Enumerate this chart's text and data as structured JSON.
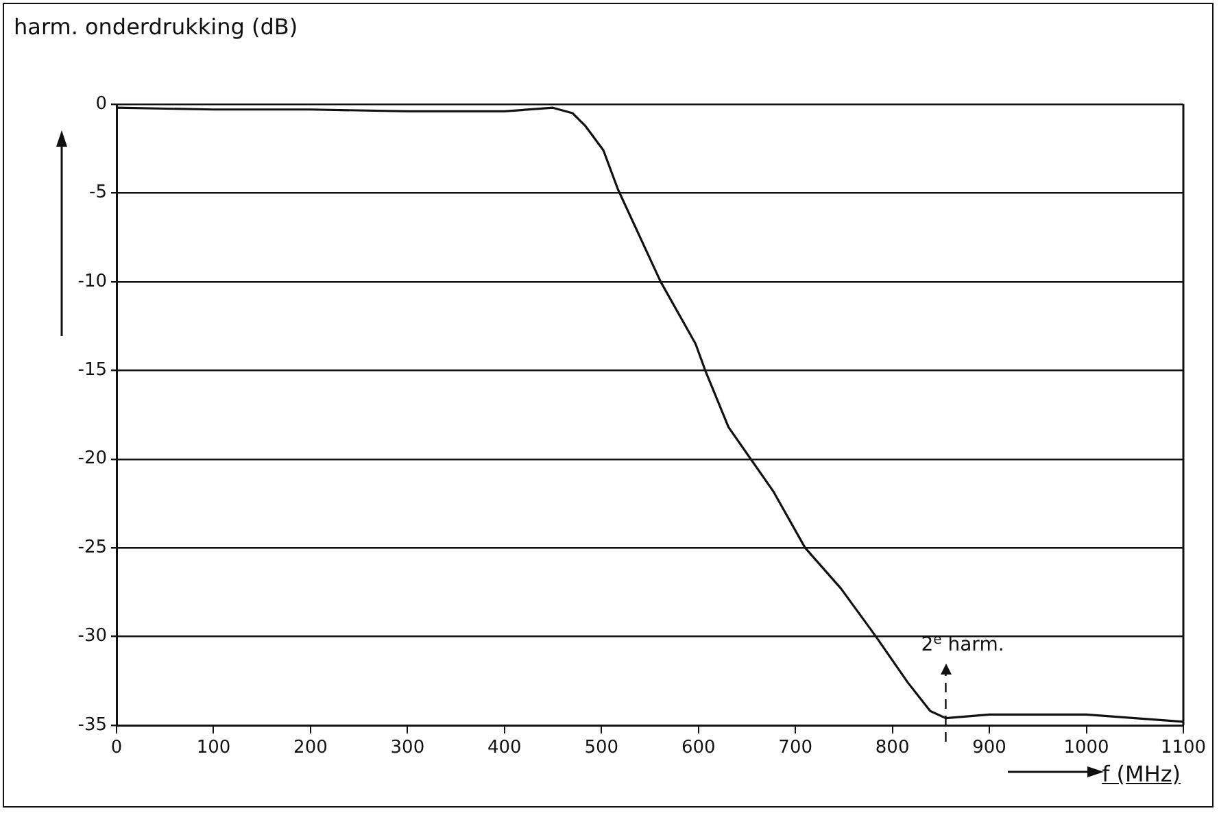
{
  "chart_data": {
    "type": "line",
    "xlabel": "f (MHz)",
    "ylabel": "harm. onderdrukking (dB)",
    "x": [
      0,
      100,
      200,
      300,
      400,
      450,
      470,
      483,
      502,
      517,
      561,
      597,
      607,
      631,
      654,
      677,
      710,
      747,
      783,
      816,
      839,
      855,
      900,
      1000,
      1100
    ],
    "series": [
      {
        "color": "#111111",
        "values": [
          -0.2,
          -0.3,
          -0.3,
          -0.4,
          -0.4,
          -0.2,
          -0.5,
          -1.2,
          -2.6,
          -4.8,
          -10,
          -13.5,
          -15,
          -18.2,
          -20,
          -21.8,
          -25,
          -27.3,
          -30,
          -32.6,
          -34.2,
          -34.6,
          -34.4,
          -34.4,
          -34.8
        ]
      }
    ],
    "xlim": [
      0,
      1100
    ],
    "xticks": [
      0,
      100,
      200,
      300,
      400,
      500,
      600,
      700,
      800,
      900,
      1000,
      1100
    ],
    "ylim": [
      -35,
      0
    ],
    "yticks": [
      0,
      -5,
      -10,
      -15,
      -20,
      -25,
      -30,
      -35
    ],
    "tick_labels": "xy",
    "grid": "y",
    "legend": false,
    "marker": "none",
    "line_style": "solid",
    "ref_lines": [
      {
        "axis": "x",
        "value": 855,
        "label": "2$^{e}$ harm.",
        "line_style": "dashed",
        "color": "#111111"
      }
    ]
  }
}
